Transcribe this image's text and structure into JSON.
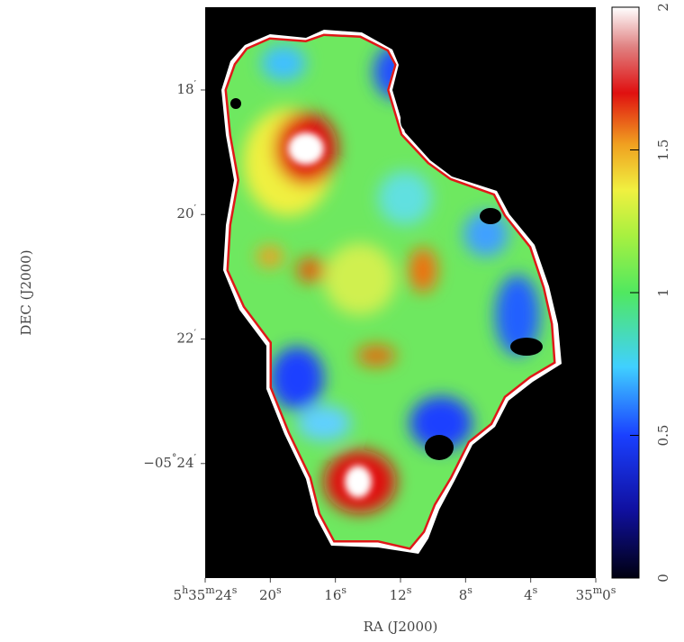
{
  "chart_data": {
    "type": "image",
    "x_label": "RA (J2000)",
    "y_label": "DEC (J2000)",
    "xlim": [
      24,
      0
    ],
    "xticks": [
      {
        "value": 24,
        "label": "5h35m24s"
      },
      {
        "value": 20,
        "label": "20s"
      },
      {
        "value": 16,
        "label": "16s"
      },
      {
        "value": 12,
        "label": "12s"
      },
      {
        "value": 8,
        "label": "8s"
      },
      {
        "value": 4,
        "label": "4s"
      },
      {
        "value": 0,
        "label": "35m0s"
      }
    ],
    "ylim": [
      16.67,
      25.84
    ],
    "yticks": [
      {
        "value": 18,
        "label": "18′"
      },
      {
        "value": 20,
        "label": "20′"
      },
      {
        "value": 22,
        "label": "22′"
      },
      {
        "value": 24,
        "label": "−05°24′"
      }
    ],
    "colorbar": {
      "lim": [
        0,
        2
      ],
      "ticks": [
        0,
        0.5,
        1,
        1.5,
        2
      ]
    }
  }
}
